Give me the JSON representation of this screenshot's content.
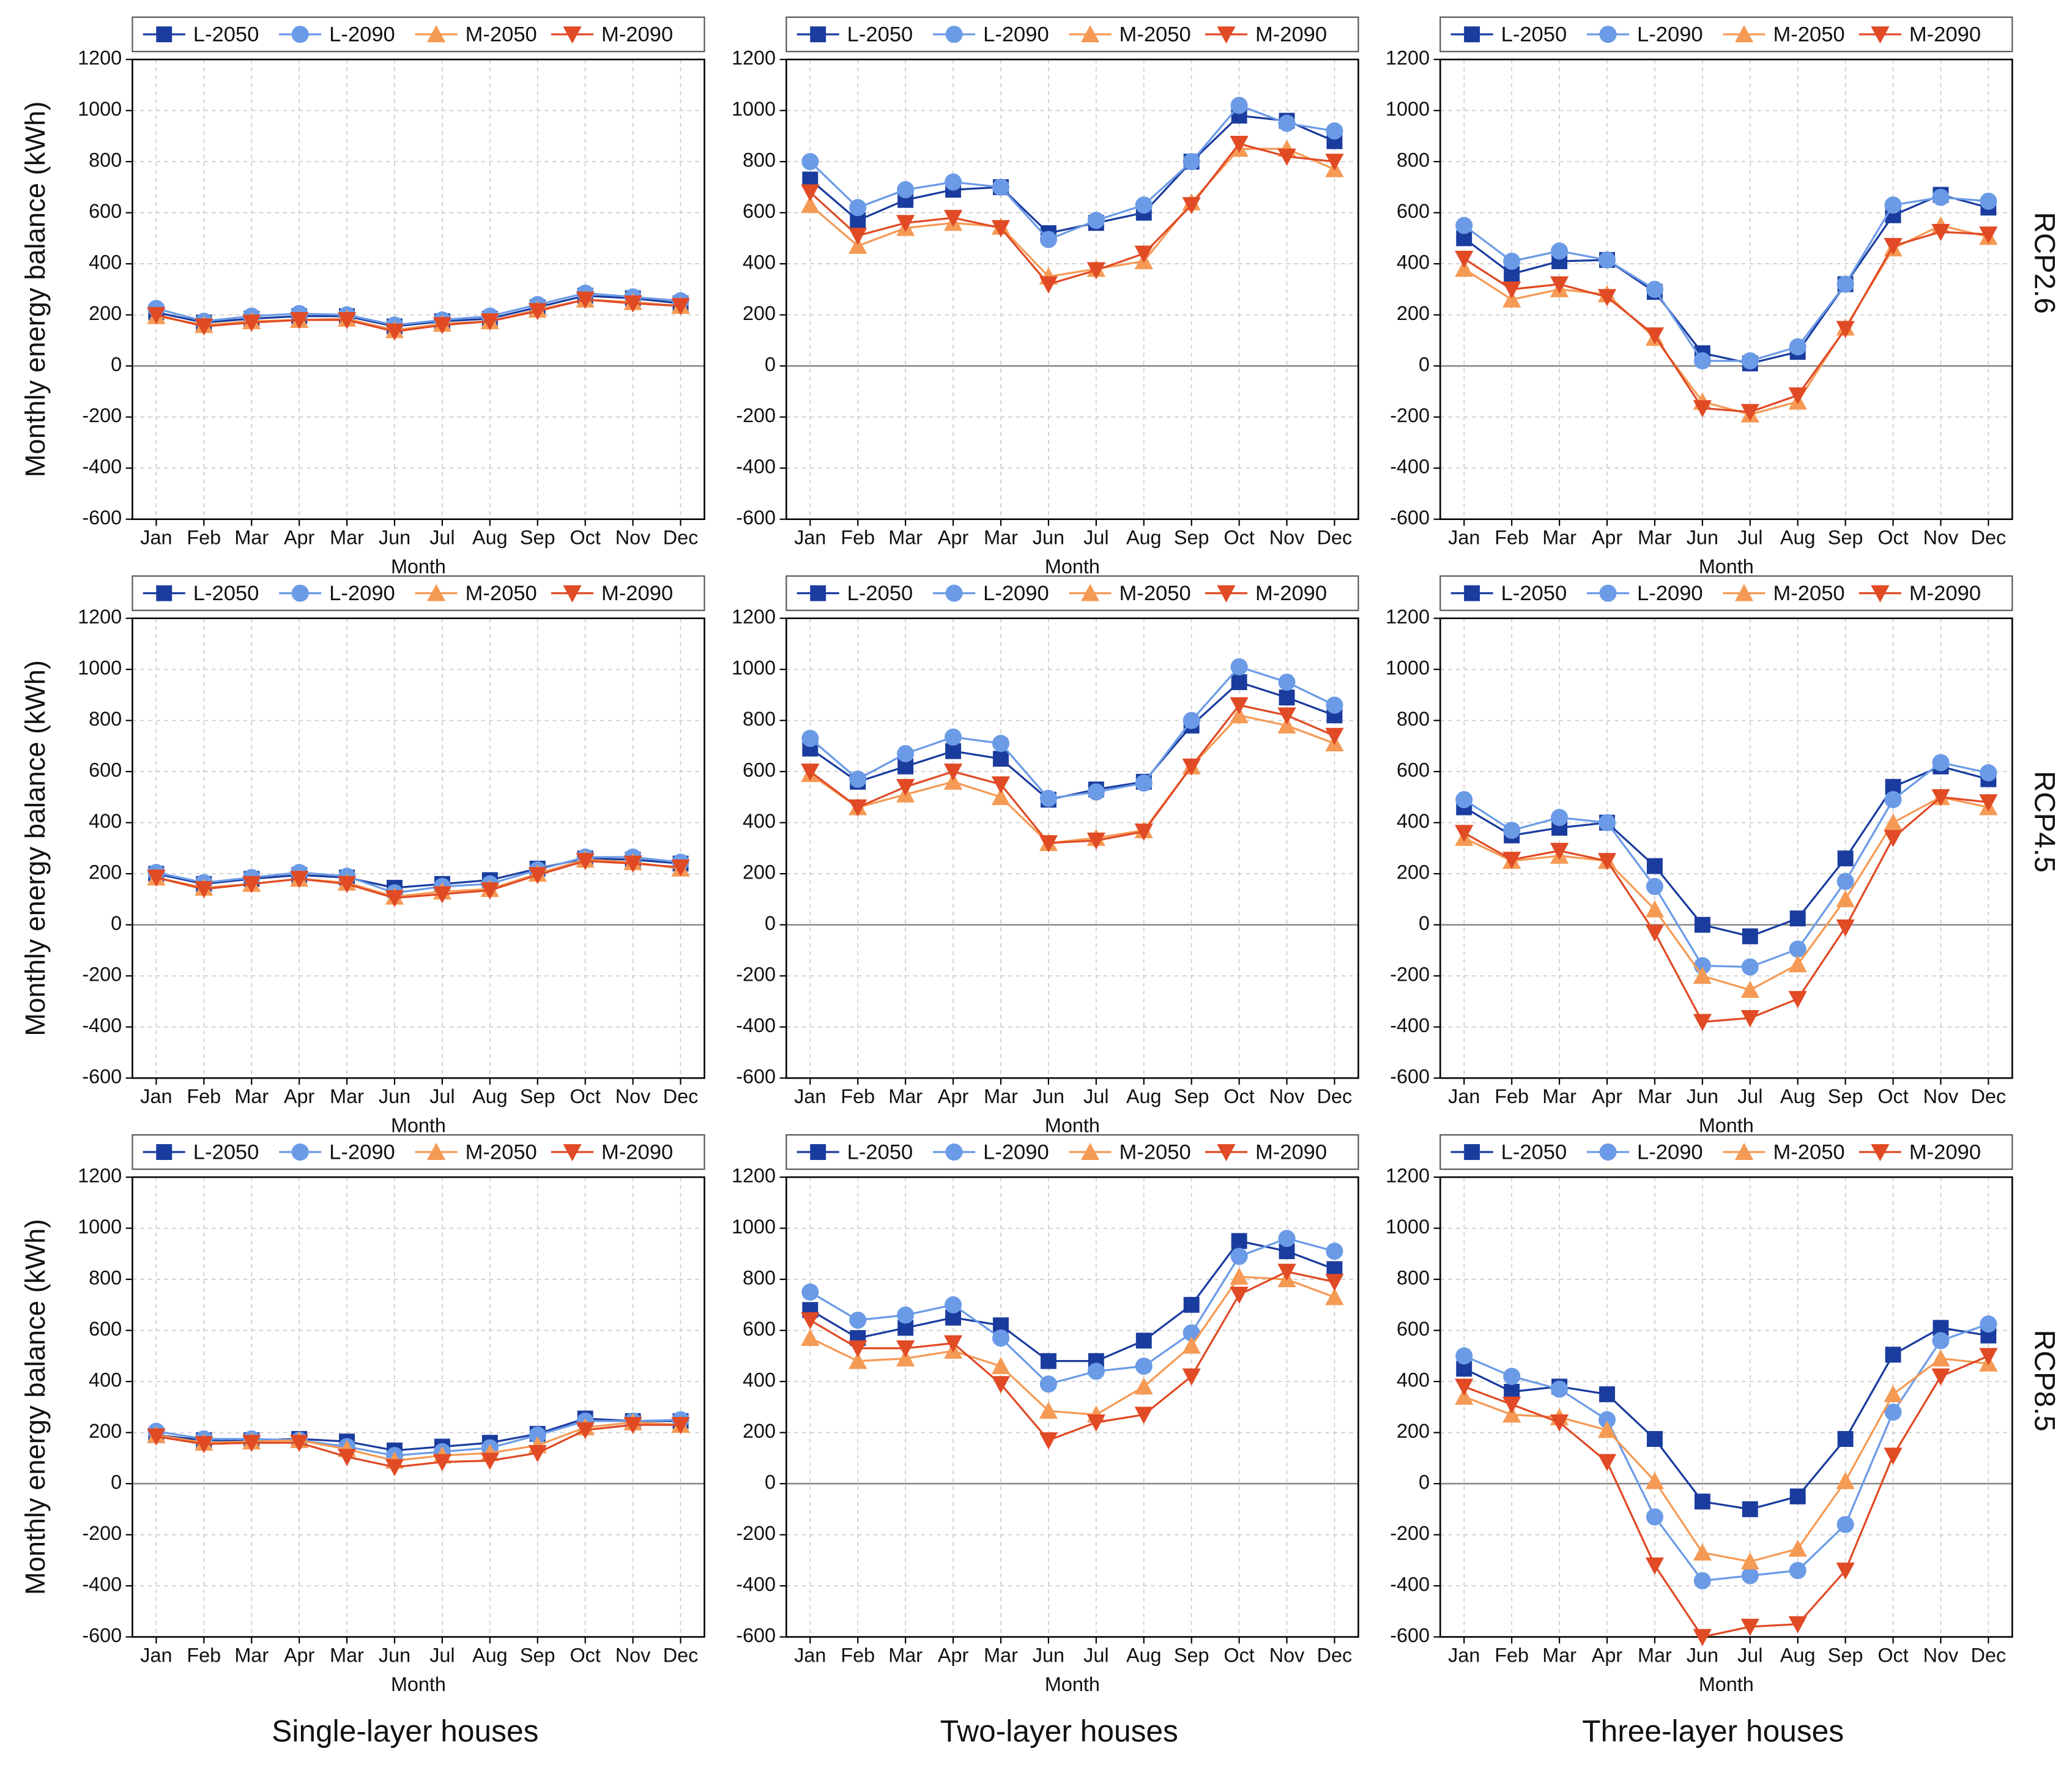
{
  "row_labels": [
    "RCP2.6",
    "RCP4.5",
    "RCP8.5"
  ],
  "column_labels": [
    "Single-layer houses",
    "Two-layer houses",
    "Three-layer houses"
  ],
  "chart_data": [
    {
      "type": "line",
      "y_label": "Monthly energy balance (kWh)",
      "x_label": "Month",
      "categories": [
        "Jan",
        "Feb",
        "Mar",
        "Apr",
        "Mar",
        "Jun",
        "Jul",
        "Aug",
        "Sep",
        "Oct",
        "Nov",
        "Dec"
      ],
      "ylim": [
        -600,
        1200
      ],
      "yticks": [
        -600,
        -400,
        -200,
        0,
        200,
        400,
        600,
        800,
        1000,
        1200
      ],
      "grid": true,
      "series": [
        {
          "name": "L-2050",
          "color": "#1a3c9e",
          "marker": "square",
          "values": [
            210,
            170,
            185,
            195,
            195,
            155,
            175,
            185,
            230,
            275,
            265,
            245
          ]
        },
        {
          "name": "L-2090",
          "color": "#6b9be6",
          "marker": "circle",
          "values": [
            225,
            175,
            195,
            205,
            200,
            160,
            180,
            195,
            240,
            285,
            270,
            255
          ]
        },
        {
          "name": "M-2050",
          "color": "#f59a55",
          "marker": "triangle-up",
          "values": [
            195,
            160,
            175,
            180,
            185,
            140,
            165,
            175,
            220,
            260,
            250,
            235
          ]
        },
        {
          "name": "M-2090",
          "color": "#e04a25",
          "marker": "triangle-down",
          "values": [
            200,
            155,
            170,
            180,
            180,
            135,
            160,
            175,
            215,
            260,
            245,
            235
          ]
        }
      ]
    },
    {
      "type": "line",
      "x_label": "Month",
      "categories": [
        "Jan",
        "Feb",
        "Mar",
        "Apr",
        "Mar",
        "Jun",
        "Jul",
        "Aug",
        "Sep",
        "Oct",
        "Nov",
        "Dec"
      ],
      "ylim": [
        -600,
        1200
      ],
      "yticks": [
        -600,
        -400,
        -200,
        0,
        200,
        400,
        600,
        800,
        1000,
        1200
      ],
      "grid": true,
      "series": [
        {
          "name": "L-2050",
          "color": "#1a3c9e",
          "marker": "square",
          "values": [
            730,
            570,
            650,
            690,
            700,
            520,
            560,
            600,
            800,
            980,
            960,
            880
          ]
        },
        {
          "name": "L-2090",
          "color": "#6b9be6",
          "marker": "circle",
          "values": [
            800,
            620,
            690,
            720,
            700,
            495,
            570,
            630,
            800,
            1020,
            950,
            920
          ]
        },
        {
          "name": "M-2050",
          "color": "#f59a55",
          "marker": "triangle-up",
          "values": [
            630,
            470,
            540,
            560,
            545,
            350,
            380,
            410,
            640,
            850,
            850,
            770
          ]
        },
        {
          "name": "M-2090",
          "color": "#e04a25",
          "marker": "triangle-down",
          "values": [
            680,
            510,
            560,
            580,
            540,
            320,
            375,
            440,
            630,
            870,
            820,
            800
          ]
        }
      ]
    },
    {
      "type": "line",
      "x_label": "Month",
      "categories": [
        "Jan",
        "Feb",
        "Mar",
        "Apr",
        "Mar",
        "Jun",
        "Jul",
        "Aug",
        "Sep",
        "Oct",
        "Nov",
        "Dec"
      ],
      "ylim": [
        -600,
        1200
      ],
      "yticks": [
        -600,
        -400,
        -200,
        0,
        200,
        400,
        600,
        800,
        1000,
        1200
      ],
      "grid": true,
      "series": [
        {
          "name": "L-2050",
          "color": "#1a3c9e",
          "marker": "square",
          "values": [
            500,
            360,
            410,
            415,
            290,
            50,
            10,
            55,
            320,
            590,
            670,
            620
          ]
        },
        {
          "name": "L-2090",
          "color": "#6b9be6",
          "marker": "circle",
          "values": [
            550,
            410,
            450,
            415,
            300,
            20,
            20,
            75,
            320,
            630,
            660,
            645
          ]
        },
        {
          "name": "M-2050",
          "color": "#f59a55",
          "marker": "triangle-up",
          "values": [
            380,
            260,
            300,
            280,
            110,
            -140,
            -190,
            -140,
            150,
            460,
            550,
            505
          ]
        },
        {
          "name": "M-2090",
          "color": "#e04a25",
          "marker": "triangle-down",
          "values": [
            420,
            300,
            320,
            270,
            120,
            -165,
            -180,
            -115,
            145,
            470,
            525,
            515
          ]
        }
      ]
    },
    {
      "type": "line",
      "y_label": "Monthly energy balance (kWh)",
      "x_label": "Month",
      "categories": [
        "Jan",
        "Feb",
        "Mar",
        "Apr",
        "Mar",
        "Jun",
        "Jul",
        "Aug",
        "Sep",
        "Oct",
        "Nov",
        "Dec"
      ],
      "ylim": [
        -600,
        1200
      ],
      "yticks": [
        -600,
        -400,
        -200,
        0,
        200,
        400,
        600,
        800,
        1000,
        1200
      ],
      "grid": true,
      "series": [
        {
          "name": "L-2050",
          "color": "#1a3c9e",
          "marker": "square",
          "values": [
            200,
            160,
            180,
            195,
            185,
            145,
            160,
            175,
            220,
            260,
            255,
            240
          ]
        },
        {
          "name": "L-2090",
          "color": "#6b9be6",
          "marker": "circle",
          "values": [
            205,
            165,
            185,
            205,
            190,
            125,
            150,
            160,
            215,
            265,
            265,
            245
          ]
        },
        {
          "name": "M-2050",
          "color": "#f59a55",
          "marker": "triangle-up",
          "values": [
            185,
            145,
            160,
            180,
            165,
            110,
            130,
            140,
            200,
            255,
            245,
            220
          ]
        },
        {
          "name": "M-2090",
          "color": "#e04a25",
          "marker": "triangle-down",
          "values": [
            185,
            140,
            160,
            180,
            160,
            105,
            120,
            135,
            195,
            250,
            240,
            225
          ]
        }
      ]
    },
    {
      "type": "line",
      "x_label": "Month",
      "categories": [
        "Jan",
        "Feb",
        "Mar",
        "Apr",
        "Mar",
        "Jun",
        "Jul",
        "Aug",
        "Sep",
        "Oct",
        "Nov",
        "Dec"
      ],
      "ylim": [
        -600,
        1200
      ],
      "yticks": [
        -600,
        -400,
        -200,
        0,
        200,
        400,
        600,
        800,
        1000,
        1200
      ],
      "grid": true,
      "series": [
        {
          "name": "L-2050",
          "color": "#1a3c9e",
          "marker": "square",
          "values": [
            690,
            560,
            620,
            680,
            650,
            490,
            530,
            560,
            780,
            950,
            890,
            820
          ]
        },
        {
          "name": "L-2090",
          "color": "#6b9be6",
          "marker": "circle",
          "values": [
            730,
            570,
            670,
            735,
            710,
            495,
            520,
            555,
            800,
            1010,
            950,
            860
          ]
        },
        {
          "name": "M-2050",
          "color": "#f59a55",
          "marker": "triangle-up",
          "values": [
            590,
            460,
            510,
            560,
            500,
            320,
            340,
            370,
            620,
            820,
            780,
            710
          ]
        },
        {
          "name": "M-2090",
          "color": "#e04a25",
          "marker": "triangle-down",
          "values": [
            600,
            460,
            540,
            600,
            550,
            320,
            330,
            365,
            620,
            860,
            820,
            740
          ]
        }
      ]
    },
    {
      "type": "line",
      "x_label": "Month",
      "categories": [
        "Jan",
        "Feb",
        "Mar",
        "Apr",
        "Mar",
        "Jun",
        "Jul",
        "Aug",
        "Sep",
        "Oct",
        "Nov",
        "Dec"
      ],
      "ylim": [
        -600,
        1200
      ],
      "yticks": [
        -600,
        -400,
        -200,
        0,
        200,
        400,
        600,
        800,
        1000,
        1200
      ],
      "grid": true,
      "series": [
        {
          "name": "L-2050",
          "color": "#1a3c9e",
          "marker": "square",
          "values": [
            460,
            350,
            380,
            400,
            230,
            0,
            -45,
            25,
            260,
            540,
            620,
            570
          ]
        },
        {
          "name": "L-2090",
          "color": "#6b9be6",
          "marker": "circle",
          "values": [
            490,
            370,
            420,
            400,
            150,
            -160,
            -165,
            -95,
            170,
            490,
            635,
            595
          ]
        },
        {
          "name": "M-2050",
          "color": "#f59a55",
          "marker": "triangle-up",
          "values": [
            340,
            250,
            270,
            250,
            60,
            -200,
            -255,
            -155,
            100,
            400,
            500,
            460
          ]
        },
        {
          "name": "M-2090",
          "color": "#e04a25",
          "marker": "triangle-down",
          "values": [
            360,
            255,
            290,
            250,
            -30,
            -380,
            -365,
            -290,
            -10,
            340,
            500,
            480
          ]
        }
      ]
    },
    {
      "type": "line",
      "y_label": "Monthly energy balance (kWh)",
      "x_label": "Month",
      "categories": [
        "Jan",
        "Feb",
        "Mar",
        "Apr",
        "Mar",
        "Jun",
        "Jul",
        "Aug",
        "Sep",
        "Oct",
        "Nov",
        "Dec"
      ],
      "ylim": [
        -600,
        1200
      ],
      "yticks": [
        -600,
        -400,
        -200,
        0,
        200,
        400,
        600,
        800,
        1000,
        1200
      ],
      "grid": true,
      "series": [
        {
          "name": "L-2050",
          "color": "#1a3c9e",
          "marker": "square",
          "values": [
            190,
            170,
            170,
            175,
            165,
            130,
            145,
            160,
            195,
            255,
            245,
            245
          ]
        },
        {
          "name": "L-2090",
          "color": "#6b9be6",
          "marker": "circle",
          "values": [
            205,
            175,
            175,
            170,
            145,
            110,
            125,
            140,
            190,
            245,
            245,
            250
          ]
        },
        {
          "name": "M-2050",
          "color": "#f59a55",
          "marker": "triangle-up",
          "values": [
            190,
            160,
            165,
            170,
            135,
            90,
            110,
            120,
            150,
            220,
            240,
            230
          ]
        },
        {
          "name": "M-2090",
          "color": "#e04a25",
          "marker": "triangle-down",
          "values": [
            185,
            155,
            160,
            160,
            105,
            65,
            85,
            90,
            120,
            210,
            230,
            230
          ]
        }
      ]
    },
    {
      "type": "line",
      "x_label": "Month",
      "categories": [
        "Jan",
        "Feb",
        "Mar",
        "Apr",
        "Mar",
        "Jun",
        "Jul",
        "Aug",
        "Sep",
        "Oct",
        "Nov",
        "Dec"
      ],
      "ylim": [
        -600,
        1200
      ],
      "yticks": [
        -600,
        -400,
        -200,
        0,
        200,
        400,
        600,
        800,
        1000,
        1200
      ],
      "grid": true,
      "series": [
        {
          "name": "L-2050",
          "color": "#1a3c9e",
          "marker": "square",
          "values": [
            680,
            570,
            610,
            650,
            620,
            480,
            480,
            560,
            700,
            950,
            910,
            840
          ]
        },
        {
          "name": "L-2090",
          "color": "#6b9be6",
          "marker": "circle",
          "values": [
            750,
            640,
            660,
            700,
            570,
            390,
            440,
            460,
            590,
            890,
            960,
            910
          ]
        },
        {
          "name": "M-2050",
          "color": "#f59a55",
          "marker": "triangle-up",
          "values": [
            570,
            480,
            490,
            520,
            460,
            285,
            270,
            380,
            540,
            810,
            800,
            730
          ]
        },
        {
          "name": "M-2090",
          "color": "#e04a25",
          "marker": "triangle-down",
          "values": [
            640,
            530,
            530,
            550,
            390,
            170,
            240,
            270,
            420,
            740,
            830,
            790
          ]
        }
      ]
    },
    {
      "type": "line",
      "x_label": "Month",
      "categories": [
        "Jan",
        "Feb",
        "Mar",
        "Apr",
        "Mar",
        "Jun",
        "Jul",
        "Aug",
        "Sep",
        "Oct",
        "Nov",
        "Dec"
      ],
      "ylim": [
        -600,
        1200
      ],
      "yticks": [
        -600,
        -400,
        -200,
        0,
        200,
        400,
        600,
        800,
        1000,
        1200
      ],
      "grid": true,
      "series": [
        {
          "name": "L-2050",
          "color": "#1a3c9e",
          "marker": "square",
          "values": [
            450,
            360,
            380,
            350,
            175,
            -70,
            -100,
            -50,
            175,
            505,
            610,
            580
          ]
        },
        {
          "name": "L-2090",
          "color": "#6b9be6",
          "marker": "circle",
          "values": [
            500,
            420,
            370,
            250,
            -130,
            -380,
            -360,
            -340,
            -160,
            280,
            560,
            625
          ]
        },
        {
          "name": "M-2050",
          "color": "#f59a55",
          "marker": "triangle-up",
          "values": [
            340,
            270,
            260,
            210,
            10,
            -270,
            -305,
            -255,
            10,
            350,
            490,
            470
          ]
        },
        {
          "name": "M-2090",
          "color": "#e04a25",
          "marker": "triangle-down",
          "values": [
            380,
            310,
            240,
            85,
            -320,
            -600,
            -560,
            -550,
            -340,
            110,
            420,
            500
          ]
        }
      ]
    }
  ]
}
